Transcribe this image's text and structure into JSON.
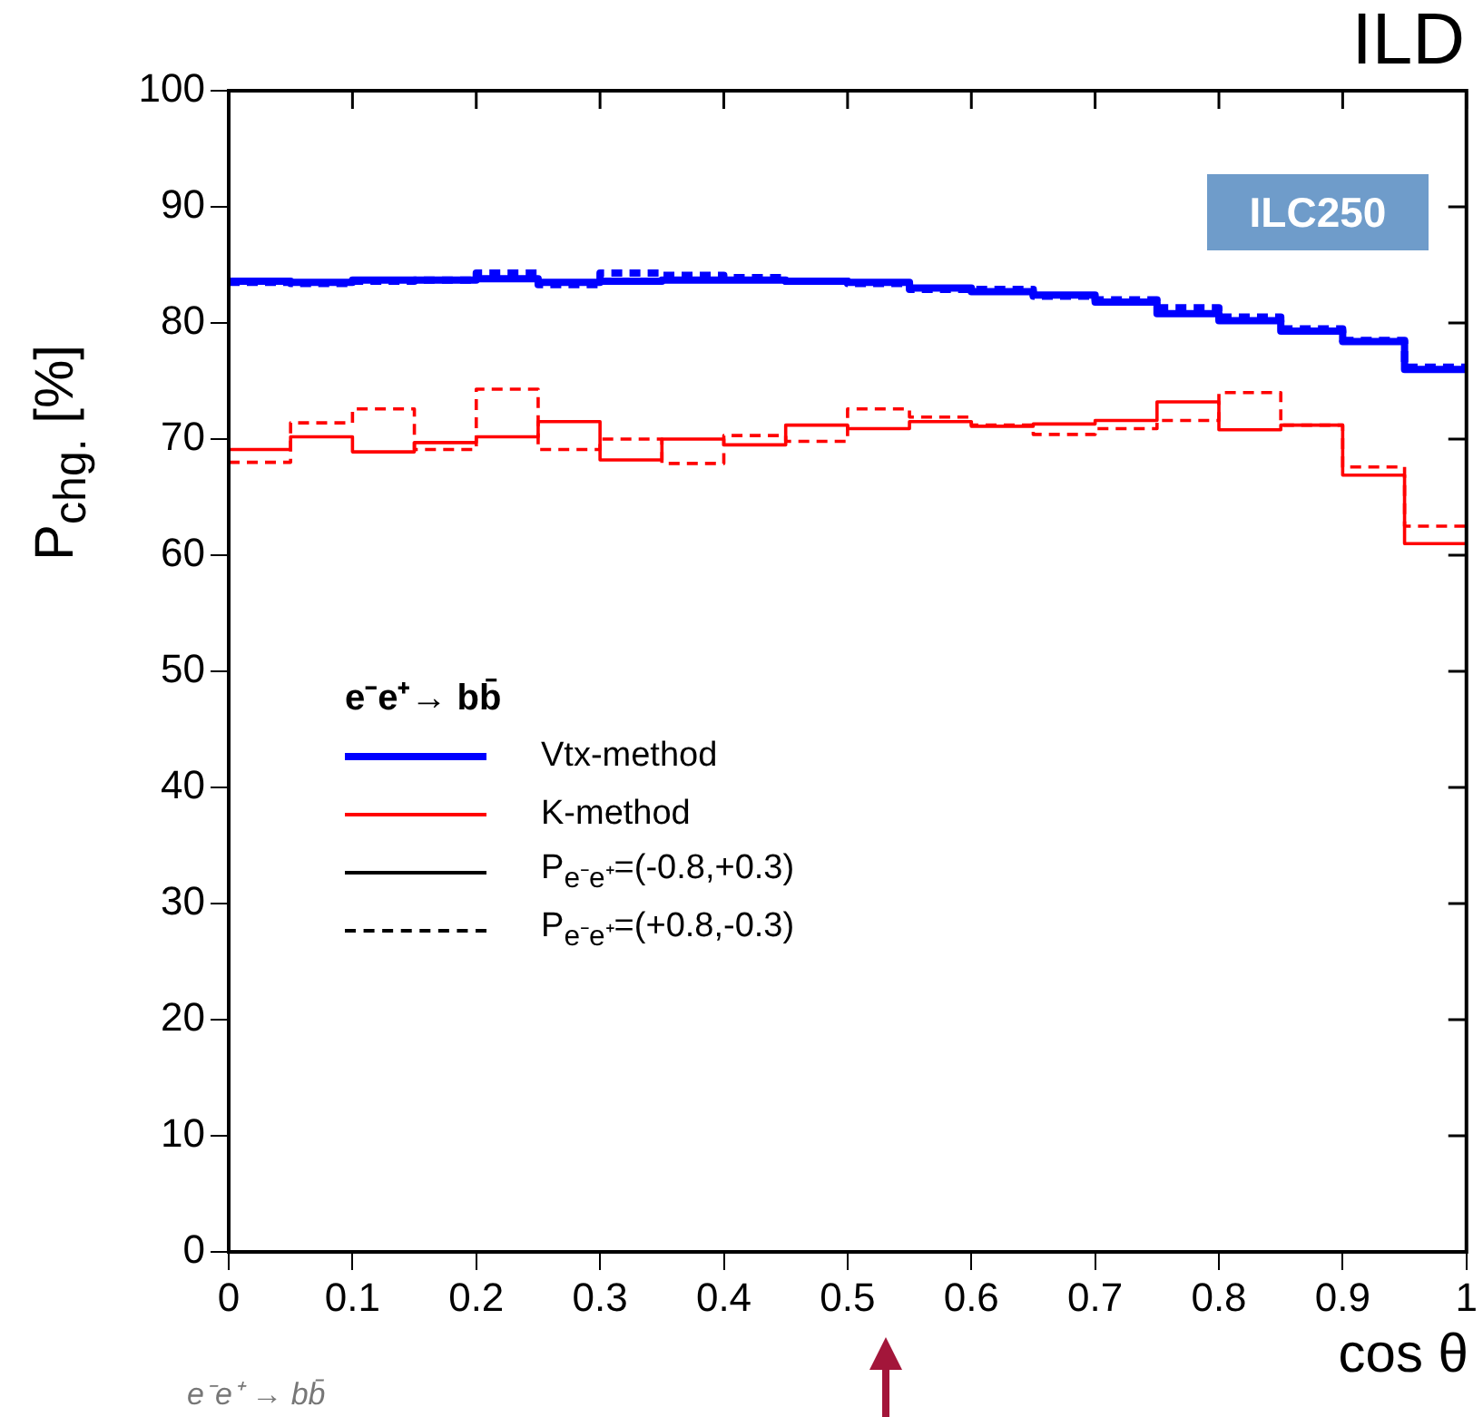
{
  "chart_data": {
    "type": "histogram",
    "title": "ILD",
    "xlabel": "cos θ",
    "ylabel": "P$_{chg.}$ [%]",
    "legend_title": "e⁻e⁺→ bb̄",
    "annotations": [
      "ILC250",
      "P$_{e⁻e⁺}$=(-0.8,+0.3)",
      "P$_{e⁻e⁺}$=(+0.8,-0.3)",
      "e⁻e⁺ → bb̄"
    ],
    "bins": [
      0,
      0.05,
      0.1,
      0.15,
      0.2,
      0.25,
      0.3,
      0.35,
      0.4,
      0.45,
      0.5,
      0.55,
      0.6,
      0.65,
      0.7,
      0.75,
      0.8,
      0.85,
      0.9,
      0.95,
      1
    ],
    "series": [
      {
        "name": "Vtx-method",
        "color": "#0000ff",
        "line_style": "solid",
        "values": [
          83.6,
          83.5,
          83.7,
          83.7,
          83.8,
          83.5,
          83.6,
          83.7,
          83.7,
          83.6,
          83.5,
          83.0,
          82.7,
          82.4,
          81.8,
          80.8,
          80.2,
          79.3,
          78.4,
          76.0
        ]
      },
      {
        "color": "#0000fe",
        "line_style": "dashed",
        "values": [
          83.5,
          83.4,
          83.6,
          83.7,
          84.3,
          83.3,
          84.3,
          84.1,
          83.9,
          83.6,
          83.4,
          82.9,
          82.9,
          82.3,
          82.0,
          81.3,
          80.5,
          79.5,
          78.5,
          76.2
        ]
      },
      {
        "name": "K-method",
        "color": "#ff0000",
        "line_style": "solid",
        "values": [
          69.1,
          70.2,
          68.9,
          69.7,
          70.2,
          71.5,
          68.2,
          70.0,
          69.5,
          71.2,
          70.9,
          71.5,
          71.1,
          71.3,
          71.6,
          73.2,
          70.8,
          71.2,
          66.9,
          61.0
        ]
      },
      {
        "color": "#fe0000",
        "line_style": "dashed",
        "values": [
          68.0,
          71.4,
          72.6,
          69.1,
          74.3,
          69.1,
          70.0,
          67.9,
          70.3,
          69.8,
          72.6,
          71.9,
          71.2,
          70.4,
          70.9,
          71.6,
          74.0,
          71.2,
          67.6,
          62.5
        ]
      }
    ],
    "xlim": [
      0,
      1
    ],
    "xticks": [
      0,
      0.1,
      0.2,
      0.3,
      0.4,
      0.5,
      0.6,
      0.7,
      0.8,
      0.9,
      1
    ],
    "ylim": [
      0,
      100
    ],
    "yticks": [
      0,
      10,
      20,
      30,
      40,
      50,
      60,
      70,
      80,
      90,
      100
    ],
    "legend": "left",
    "grid": false
  }
}
